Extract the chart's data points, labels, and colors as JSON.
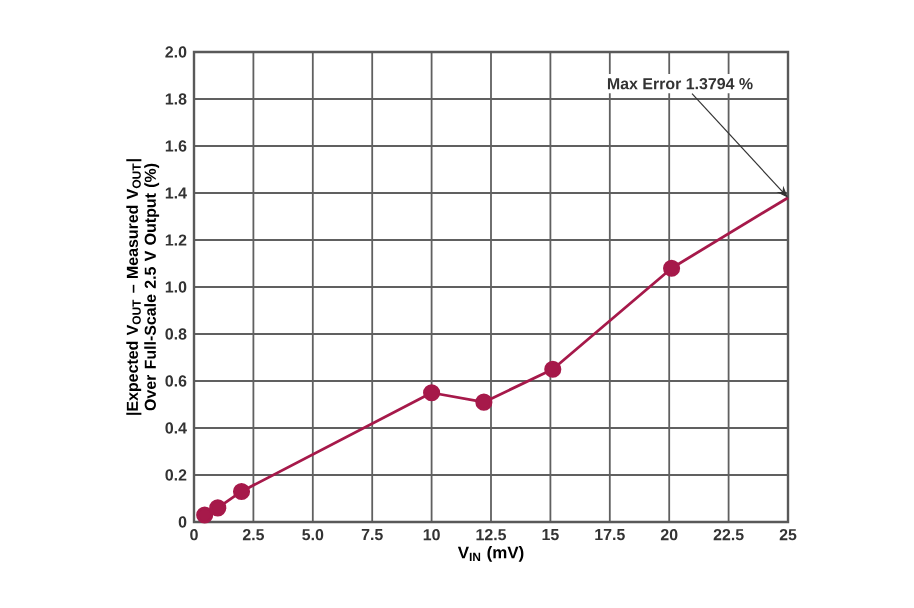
{
  "chart_data": {
    "type": "line",
    "xlabel": "V$_{IN}$ (mV)",
    "ylabel": "|Expected V$_{OUT}$ – Measured V$_{OUT}$| Over Full-Scale 2.5 V Output (%)",
    "series": [
      {
        "color": "#a6194a",
        "marker": "circle",
        "x": [
          0.45,
          1.0,
          2.0,
          10.0,
          12.2,
          15.1,
          20.1
        ],
        "values": [
          0.03,
          0.06,
          0.13,
          0.55,
          0.51,
          0.65,
          1.08
        ]
      },
      {
        "color": "#a6194a",
        "marker": "none",
        "x": [
          20.1,
          25
        ],
        "values": [
          1.08,
          1.38
        ]
      }
    ],
    "xlim": [
      0,
      25
    ],
    "ylim": [
      0,
      2.0
    ],
    "xticks": [
      0,
      {
        "value": 2.5,
        "label": "2.5"
      },
      {
        "value": 5,
        "label": "5.0"
      },
      {
        "value": 7.5,
        "label": "7.5"
      },
      10,
      {
        "value": 12.5,
        "label": "12.5"
      },
      15,
      {
        "value": 17.5,
        "label": "17.5"
      },
      20,
      {
        "value": 22.5,
        "label": "22.5"
      },
      25
    ],
    "yticks": [
      0,
      0.2,
      0.4,
      0.6,
      0.8,
      {
        "value": 1.0,
        "label": "1.0"
      },
      1.2,
      1.4,
      1.6,
      1.8,
      {
        "value": 2.0,
        "label": "2.0"
      }
    ],
    "grid": true,
    "annotations": [
      {
        "text": "Max Error 1.3794 %",
        "x": 25,
        "y": 1.38
      }
    ]
  }
}
